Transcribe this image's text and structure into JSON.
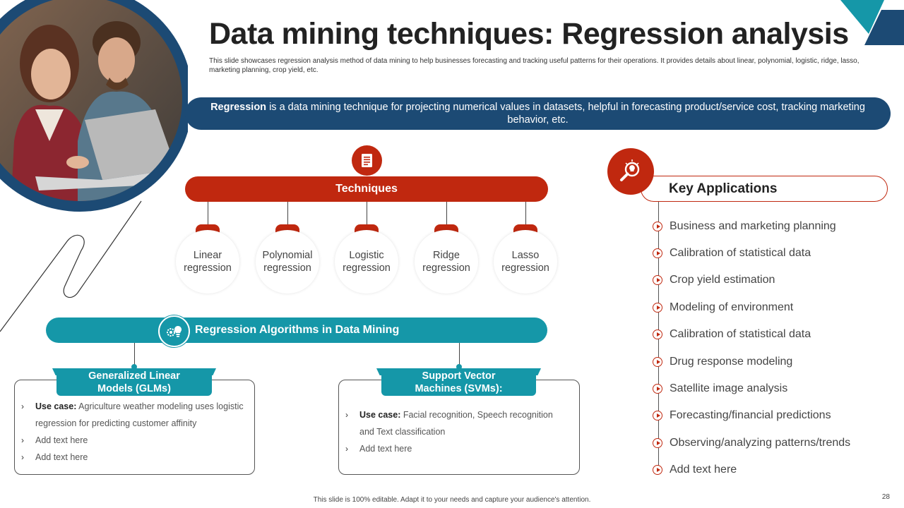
{
  "title": "Data mining techniques: Regression analysis",
  "subtitle": "This slide showcases regression analysis method of data mining to help businesses forecasting and tracking useful patterns for their operations. It provides details about linear, polynomial, logistic, ridge, lasso, marketing planning, crop yield, etc.",
  "banner": {
    "bold": "Regression",
    "text": " is a data mining technique for projecting numerical values in datasets, helpful in forecasting product/service cost, tracking marketing behavior, etc."
  },
  "techniques": {
    "label": "Techniques",
    "items": [
      {
        "line1": "Linear",
        "line2": "regression"
      },
      {
        "line1": "Polynomial",
        "line2": "regression"
      },
      {
        "line1": "Logistic",
        "line2": "regression"
      },
      {
        "line1": "Ridge",
        "line2": "regression"
      },
      {
        "line1": "Lasso",
        "line2": "regression"
      }
    ]
  },
  "algorithms": {
    "label": "Regression  Algorithms in Data Mining",
    "glm": {
      "title1": "Generalized Linear",
      "title2": "Models (GLMs)",
      "usecase_label": "Use case:",
      "usecase_text": " Agriculture weather modeling uses logistic regression for predicting customer affinity",
      "item2": "Add text here",
      "item3": "Add text here"
    },
    "svm": {
      "title1": "Support Vector",
      "title2": "Machines (SVMs):",
      "usecase_label": "Use case:",
      "usecase_text": " Facial recognition, Speech recognition and Text classification",
      "item2": "Add text here"
    }
  },
  "key_applications": {
    "label": "Key Applications",
    "items": [
      "Business and marketing planning",
      "Calibration of statistical data",
      "Crop yield estimation",
      "Modeling of environment",
      "Calibration of statistical data",
      "Drug response modeling",
      "Satellite image analysis",
      "Forecasting/financial predictions",
      "Observing/analyzing  patterns/trends",
      "Add text here"
    ]
  },
  "footer": "This slide is 100% editable. Adapt it to your needs and capture your audience's attention.",
  "page_number": "28",
  "colors": {
    "navy": "#1c4a74",
    "red": "#c0280f",
    "teal": "#1597a8"
  }
}
